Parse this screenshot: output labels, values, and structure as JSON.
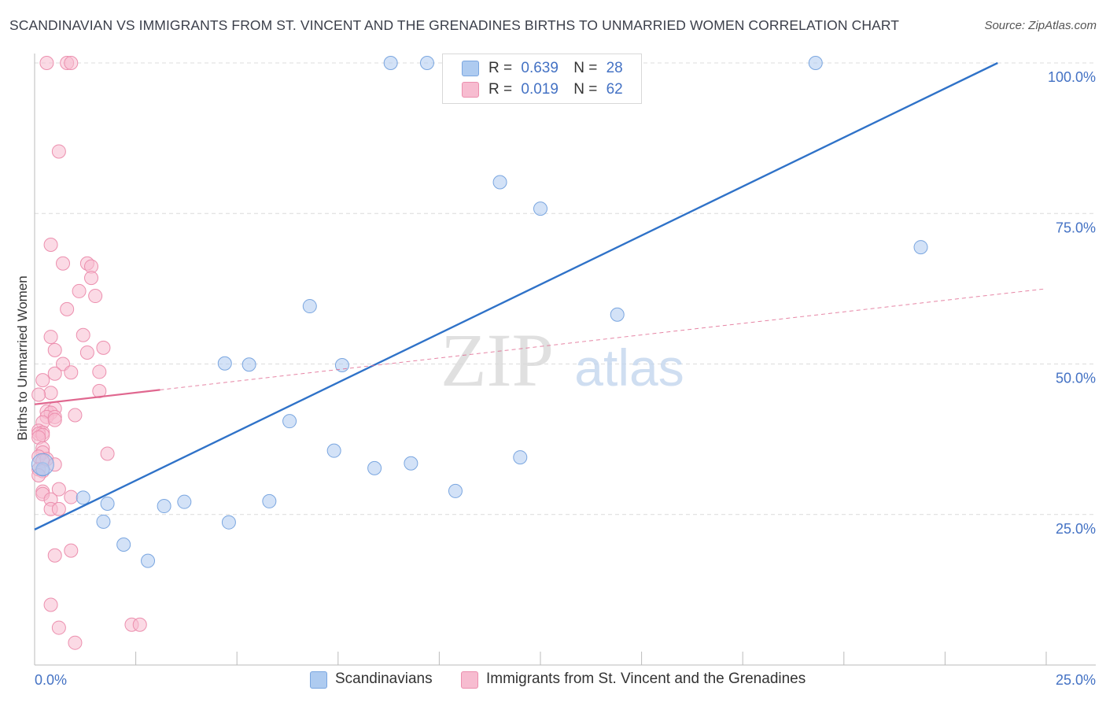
{
  "title": "SCANDINAVIAN VS IMMIGRANTS FROM ST. VINCENT AND THE GRENADINES BIRTHS TO UNMARRIED WOMEN CORRELATION CHART",
  "source": "Source: ZipAtlas.com",
  "watermark": {
    "zip": "ZIP",
    "atlas": "atlas"
  },
  "legend": {
    "rows": [
      {
        "r_label": "R =",
        "r_value": "0.639",
        "n_label": "N =",
        "n_value": "28"
      },
      {
        "r_label": "R =",
        "r_value": "0.019",
        "n_label": "N =",
        "n_value": "62"
      }
    ]
  },
  "bottom_legend": {
    "series1": "Scandinavians",
    "series2": "Immigrants from St. Vincent and the Grenadines"
  },
  "chart_data": {
    "type": "scatter",
    "title": "SCANDINAVIAN VS IMMIGRANTS FROM ST. VINCENT AND THE GRENADINES BIRTHS TO UNMARRIED WOMEN CORRELATION CHART",
    "xlabel": "",
    "ylabel": "Births to Unmarried Women",
    "xlim": [
      0,
      25
    ],
    "ylim": [
      0,
      100
    ],
    "x_tick_labels": [
      "0.0%",
      "25.0%"
    ],
    "y_tick_labels": [
      "25.0%",
      "50.0%",
      "75.0%",
      "100.0%"
    ],
    "y_ticks": [
      25,
      50,
      75,
      100
    ],
    "grid": true,
    "legend_position": "top-center",
    "colors": {
      "series1_fill": "#aecbf0",
      "series1_stroke": "#7aa6e0",
      "series1_line": "#2f72c8",
      "series2_fill": "#f7bcd0",
      "series2_stroke": "#ec8fae",
      "series2_line": "#e0678f"
    },
    "series": [
      {
        "name": "Scandinavians",
        "points": [
          [
            0.2,
            32.5
          ],
          [
            1.2,
            27.8
          ],
          [
            1.8,
            26.8
          ],
          [
            1.7,
            23.8
          ],
          [
            2.2,
            20
          ],
          [
            2.8,
            17.3
          ],
          [
            3.2,
            26.4
          ],
          [
            3.7,
            27.1
          ],
          [
            4.7,
            50.1
          ],
          [
            4.8,
            23.7
          ],
          [
            5.3,
            49.9
          ],
          [
            5.8,
            27.2
          ],
          [
            6.3,
            40.5
          ],
          [
            6.8,
            59.6
          ],
          [
            7.4,
            35.6
          ],
          [
            7.6,
            49.8
          ],
          [
            8.4,
            32.7
          ],
          [
            8.8,
            100
          ],
          [
            9.3,
            33.5
          ],
          [
            9.7,
            100
          ],
          [
            10.4,
            28.9
          ],
          [
            11.5,
            80.2
          ],
          [
            12.0,
            34.5
          ],
          [
            12.5,
            75.8
          ],
          [
            14.4,
            58.2
          ],
          [
            19.3,
            100
          ],
          [
            21.9,
            69.4
          ],
          [
            0.2,
            33.3
          ]
        ],
        "trend": {
          "x": [
            0.0,
            23.8
          ],
          "y": [
            22.5,
            100.0
          ]
        }
      },
      {
        "name": "Immigrants from St. Vincent and the Grenadines",
        "points": [
          [
            0.3,
            100
          ],
          [
            0.8,
            100
          ],
          [
            0.9,
            100
          ],
          [
            0.6,
            85.3
          ],
          [
            0.4,
            69.8
          ],
          [
            0.7,
            66.7
          ],
          [
            1.3,
            66.7
          ],
          [
            1.4,
            66.2
          ],
          [
            1.4,
            64.3
          ],
          [
            1.1,
            62.1
          ],
          [
            1.5,
            61.3
          ],
          [
            0.8,
            59.1
          ],
          [
            0.4,
            54.5
          ],
          [
            1.2,
            54.8
          ],
          [
            0.5,
            52.3
          ],
          [
            1.3,
            51.9
          ],
          [
            1.7,
            52.7
          ],
          [
            0.7,
            50
          ],
          [
            0.5,
            48.4
          ],
          [
            0.9,
            48.6
          ],
          [
            1.6,
            48.7
          ],
          [
            0.2,
            47.3
          ],
          [
            0.4,
            45.2
          ],
          [
            1.6,
            45.5
          ],
          [
            0.1,
            44.9
          ],
          [
            0.3,
            42.1
          ],
          [
            0.5,
            42.6
          ],
          [
            0.4,
            41.9
          ],
          [
            0.3,
            41.2
          ],
          [
            1.0,
            41.5
          ],
          [
            0.5,
            41.2
          ],
          [
            0.2,
            40.3
          ],
          [
            0.5,
            40.7
          ],
          [
            0.1,
            38.9
          ],
          [
            0.2,
            38.6
          ],
          [
            0.1,
            38.4
          ],
          [
            0.2,
            38.2
          ],
          [
            0.1,
            37.8
          ],
          [
            0.2,
            36
          ],
          [
            0.2,
            35.3
          ],
          [
            1.8,
            35.1
          ],
          [
            0.1,
            34.6
          ],
          [
            0.3,
            34.2
          ],
          [
            0.2,
            33.9
          ],
          [
            0.5,
            33.3
          ],
          [
            0.1,
            32.5
          ],
          [
            0.2,
            32.2
          ],
          [
            0.1,
            31.5
          ],
          [
            0.2,
            28.8
          ],
          [
            0.6,
            29.2
          ],
          [
            0.2,
            28.4
          ],
          [
            0.4,
            27.5
          ],
          [
            0.9,
            27.9
          ],
          [
            0.4,
            25.9
          ],
          [
            0.6,
            25.9
          ],
          [
            0.5,
            18.2
          ],
          [
            0.9,
            19
          ],
          [
            0.4,
            10
          ],
          [
            0.6,
            6.2
          ],
          [
            2.4,
            6.7
          ],
          [
            2.6,
            6.7
          ],
          [
            1.0,
            3.7
          ]
        ],
        "trend_solid": {
          "x": [
            0.0,
            3.1
          ],
          "y": [
            43.3,
            45.7
          ]
        },
        "trend_dashed": {
          "x": [
            3.1,
            25.0
          ],
          "y": [
            45.7,
            62.5
          ]
        }
      }
    ]
  }
}
